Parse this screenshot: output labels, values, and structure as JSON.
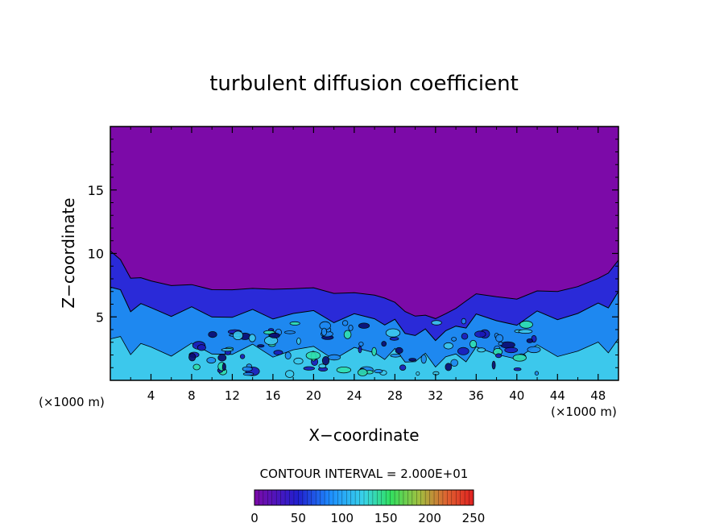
{
  "chart_data": {
    "type": "heatmap",
    "title": "turbulent diffusion coefficient",
    "xlabel": "X−coordinate",
    "ylabel": "Z−coordinate",
    "x_unit_left": "(×1000 m)",
    "x_unit_right": "(×1000 m)",
    "xlim": [
      0,
      50
    ],
    "ylim": [
      0,
      20
    ],
    "xticks": [
      4,
      8,
      12,
      16,
      20,
      24,
      28,
      32,
      36,
      40,
      44,
      48
    ],
    "yticks": [
      5,
      10,
      15
    ],
    "contour_interval_text": "CONTOUR INTERVAL = 2.000E+01",
    "colorbar": {
      "range": [
        0,
        250
      ],
      "ticks": [
        0,
        50,
        100,
        150,
        200,
        250
      ]
    },
    "colors": {
      "background_field": "#7c0aa8",
      "low": "#2020d0",
      "mid": "#1e90ff",
      "high": "#39d4e8",
      "peak": "#30e0a0"
    },
    "boundary_layer_top": [
      [
        0,
        10.2
      ],
      [
        1,
        9.4
      ],
      [
        2,
        8.2
      ],
      [
        3,
        8.0
      ],
      [
        4,
        7.8
      ],
      [
        6,
        7.6
      ],
      [
        8,
        7.4
      ],
      [
        10,
        7.2
      ],
      [
        12,
        7.2
      ],
      [
        14,
        7.1
      ],
      [
        16,
        7.3
      ],
      [
        18,
        7.2
      ],
      [
        20,
        7.2
      ],
      [
        22,
        7.0
      ],
      [
        24,
        6.8
      ],
      [
        26,
        6.7
      ],
      [
        27,
        6.6
      ],
      [
        28,
        6.0
      ],
      [
        29,
        5.5
      ],
      [
        30,
        5.1
      ],
      [
        31,
        5.0
      ],
      [
        32,
        5.0
      ],
      [
        33,
        5.2
      ],
      [
        34,
        5.6
      ],
      [
        35,
        6.4
      ],
      [
        36,
        6.7
      ],
      [
        38,
        6.6
      ],
      [
        40,
        6.5
      ],
      [
        42,
        6.9
      ],
      [
        44,
        7.1
      ],
      [
        46,
        7.4
      ],
      [
        48,
        7.9
      ],
      [
        49,
        8.6
      ],
      [
        50,
        9.4
      ]
    ]
  }
}
